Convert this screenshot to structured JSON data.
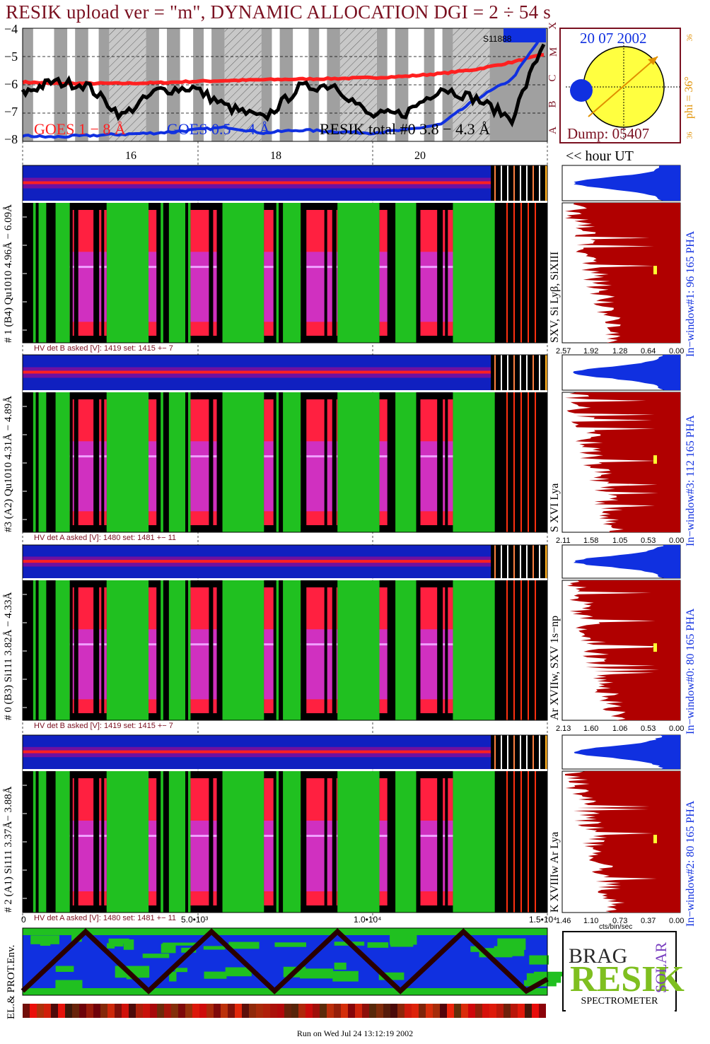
{
  "title": "RESIK upload ver = \"m\", DYNAMIC ALLOCATION  DGI =   2 ÷  54 s",
  "goes": {
    "yticks": [
      "−4",
      "−5",
      "−6",
      "−7",
      "−8"
    ],
    "class_letters": [
      "X",
      "M",
      "C",
      "B",
      "A"
    ],
    "legend": [
      {
        "label": "GOES 1 − 8 Å",
        "color": "#ff2020"
      },
      {
        "label": "GOES 0.5 − 4 Å",
        "color": "#1030e0"
      },
      {
        "label": "RESIK total #0  3.8 − 4.3 Å",
        "color": "#000000"
      }
    ],
    "marker": "S11888",
    "hour_ticks": [
      "16",
      "18",
      "20"
    ],
    "hour_caption": "<< hour UT"
  },
  "orbit": {
    "date": "20 07 2002",
    "dump": "Dump: 05407",
    "phi": "phi = 36°",
    "phi_num_top": "36",
    "phi_num_bottom": "36"
  },
  "channels": [
    {
      "left_label": "# 1 (B4) Qu1010 4.96Å − 6.09Å",
      "hv": "HV det B asked [V]:  1419 set:  1415  +−    7",
      "right_label": "SXV, Si Lyβ, SiXIII",
      "window_label": "In−window#1:   96 165  PHA",
      "xticks": [
        "2.57",
        "1.92",
        "1.28",
        "0.64",
        "0.00"
      ]
    },
    {
      "left_label": "#3 (A2) Qu1010  4.31Å − 4.89Å",
      "hv": "HV det A asked [V]:  1480 set:  1481  +−    11",
      "right_label": "S XVI Lya",
      "window_label": "In−window#3:  112 165  PHA",
      "xticks": [
        "2.11",
        "1.58",
        "1.05",
        "0.53",
        "0.00"
      ]
    },
    {
      "left_label": "# 0 (B3) Si111  3.82Å − 4.33Å",
      "hv": "HV det B asked [V]:  1419 set:  1415  +−    7",
      "right_label": "Ar XVIIw,  SXV  1s−np",
      "window_label": "In−window#0:   80 165  PHA",
      "xticks": [
        "2.13",
        "1.60",
        "1.06",
        "0.53",
        "0.00"
      ]
    },
    {
      "left_label": "# 2 (A1) Si111  3.37Å− 3.88Å",
      "hv": "HV det A asked [V]:  1480 set:  1481  +−    11",
      "right_label": "K XVIIIw  Ar Lya",
      "window_label": "In−window#2:   80 165  PHA",
      "xticks": [
        "1.46",
        "1.10",
        "0.73",
        "0.37",
        "0.00"
      ]
    }
  ],
  "bottom": {
    "xticks": [
      "0",
      "5.0•10³",
      "1.0•10⁴",
      "1.5•10⁴"
    ],
    "units": "cts/bin/sec",
    "env_label": "EL.& PROT.Env."
  },
  "logo": {
    "brand": "RESIK",
    "line1": "BRAG",
    "line2": "SOLAR",
    "caption": "SPECTROMETER"
  },
  "footer": "Run on Wed Jul 24 13:12:19 2002",
  "chart_data": [
    {
      "type": "line",
      "title": "",
      "xlabel": "hour UT",
      "ylabel": "",
      "x": [
        14.6,
        15.0,
        15.5,
        16.0,
        16.5,
        17.0,
        17.5,
        18.0,
        18.5,
        19.0,
        19.5,
        20.0,
        20.5,
        21.0,
        21.5,
        22.0
      ],
      "ylim": [
        -8,
        -4
      ],
      "series": [
        {
          "name": "GOES 1 − 8 Å",
          "values": [
            -5.9,
            -5.95,
            -5.95,
            -5.95,
            -5.93,
            -5.88,
            -5.85,
            -5.82,
            -5.8,
            -5.78,
            -5.75,
            -5.7,
            -5.6,
            -5.45,
            -5.2,
            -4.9
          ]
        },
        {
          "name": "GOES 0.5 − 4 Å",
          "values": [
            -7.8,
            -7.85,
            -7.8,
            -7.75,
            -7.7,
            -7.6,
            -7.5,
            -7.7,
            -7.6,
            -7.65,
            -7.7,
            -7.6,
            -7.4,
            -6.5,
            -5.8,
            -4.0
          ]
        },
        {
          "name": "RESIK total #0  3.8 − 4.3 Å",
          "values": [
            -6.3,
            -5.9,
            -6.0,
            -7.1,
            -6.2,
            -6.1,
            -6.8,
            -7.2,
            -6.1,
            -6.0,
            -7.1,
            -7.0,
            -6.1,
            -6.5,
            -7.2,
            -4.2
          ]
        }
      ]
    },
    {
      "type": "line",
      "title": "",
      "xlabel": "cts/bin/sec",
      "ylabel": "",
      "series": [
        {
          "name": "EL.& PROT.Env.",
          "x": [
            0,
            1800,
            3600,
            5400,
            7200,
            9000,
            10800,
            12600,
            14400,
            15000
          ],
          "values": [
            0,
            1,
            0,
            1,
            0,
            1,
            0,
            1,
            0,
            0.2
          ]
        }
      ],
      "xlim": [
        0,
        15000
      ]
    }
  ]
}
